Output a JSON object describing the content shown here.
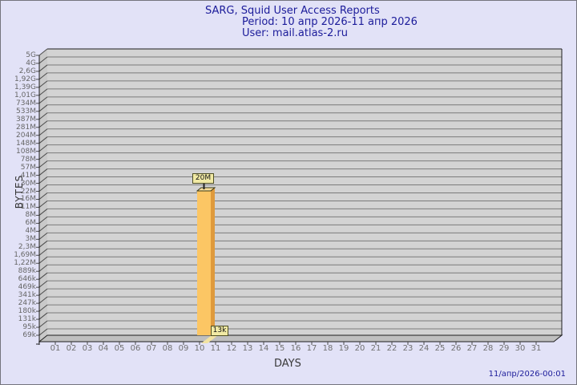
{
  "header": {
    "title": "SARG, Squid User Access Reports",
    "period": "Period: 10 апр 2026-11 апр 2026",
    "user": "User: mail.atlas-2.ru"
  },
  "footer": {
    "timestamp": "11/апр/2026-00:01"
  },
  "chart_data": {
    "type": "bar",
    "title": "SARG, Squid User Access Reports",
    "subtitle_period": "Period: 10 апр 2026-11 апр 2026",
    "subtitle_user": "User: mail.atlas-2.ru",
    "xlabel": "DAYS",
    "ylabel": "BYTES",
    "y_scale": "logarithmic-like",
    "grid": "horizontal",
    "legend": "none",
    "style": "3d-bars",
    "x_tick_labels": [
      "01",
      "02",
      "03",
      "04",
      "05",
      "06",
      "07",
      "08",
      "09",
      "10",
      "11",
      "12",
      "13",
      "14",
      "15",
      "16",
      "17",
      "18",
      "19",
      "20",
      "21",
      "22",
      "23",
      "24",
      "25",
      "26",
      "27",
      "28",
      "29",
      "30",
      "31"
    ],
    "y_tick_labels": [
      "5G",
      "4G",
      "2,6G",
      "1,92G",
      "1,39G",
      "1,01G",
      "734M",
      "533M",
      "387M",
      "281M",
      "204M",
      "148M",
      "108M",
      "78M",
      "57M",
      "41M",
      "30M",
      "22M",
      "16M",
      "11M",
      "8M",
      "6M",
      "4M",
      "3M",
      "2,3M",
      "1,69M",
      "1,22M",
      "889k",
      "646k",
      "469k",
      "341k",
      "247k",
      "180k",
      "131k",
      "95k",
      "69k"
    ],
    "values_bytes": [
      0,
      0,
      0,
      0,
      0,
      0,
      0,
      0,
      0,
      20000000,
      13000,
      0,
      0,
      0,
      0,
      0,
      0,
      0,
      0,
      0,
      0,
      0,
      0,
      0,
      0,
      0,
      0,
      0,
      0,
      0,
      0
    ],
    "bars": [
      {
        "day": "10",
        "label": "20M",
        "bytes": 20000000
      },
      {
        "day": "11",
        "label": "13k",
        "bytes": 13000
      }
    ],
    "colors": {
      "background": "#e2e2f7",
      "plot_face": "#d3d3d3",
      "plot_wall": "#c9c9c9",
      "plot_floor": "#bfbfbf",
      "gridline": "#7b7b7b",
      "bar_front": "#fcc664",
      "bar_side": "#df9a3c",
      "bar_top": "#f7dd9b",
      "annotation_bg": "#f1eaa4",
      "annotation_border": "#4f4f23",
      "title_text": "#1b1b9a",
      "axis_text": "#666666"
    }
  }
}
